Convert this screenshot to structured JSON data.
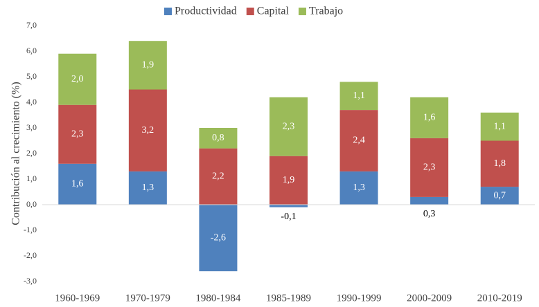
{
  "chart_data": {
    "type": "stacked_bar",
    "y_label": "Contribución al crecimiento (%)",
    "categories": [
      "1960-1969",
      "1970-1979",
      "1980-1984",
      "1985-1989",
      "1990-1999",
      "2000-2009",
      "2010-2019"
    ],
    "series": [
      {
        "name": "Productividad",
        "color": "#4f81bd",
        "values": [
          1.6,
          1.3,
          -2.6,
          -0.1,
          1.3,
          0.3,
          0.7
        ],
        "value_labels": [
          "1,6",
          "1,3",
          "-2,6",
          "-0,1",
          "1,3",
          "0,3",
          "0,7"
        ]
      },
      {
        "name": "Capital",
        "color": "#c0504d",
        "values": [
          2.3,
          3.2,
          2.2,
          1.9,
          2.4,
          2.3,
          1.8
        ],
        "value_labels": [
          "2,3",
          "3,2",
          "2,2",
          "1,9",
          "2,4",
          "2,3",
          "1,8"
        ]
      },
      {
        "name": "Trabajo",
        "color": "#9bbb59",
        "values": [
          2.0,
          1.9,
          0.8,
          2.3,
          1.1,
          1.6,
          1.1
        ],
        "value_labels": [
          "2,0",
          "1,9",
          "0,8",
          "2,3",
          "1,1",
          "1,6",
          "1,1"
        ]
      }
    ],
    "ylim": [
      -3,
      7
    ],
    "yticks": [
      {
        "value": -3,
        "label": "-3,0"
      },
      {
        "value": -2,
        "label": "-2,0"
      },
      {
        "value": -1,
        "label": "-1,0"
      },
      {
        "value": 0,
        "label": "0,0"
      },
      {
        "value": 1,
        "label": "1,0"
      },
      {
        "value": 2,
        "label": "2,0"
      },
      {
        "value": 3,
        "label": "3,0"
      },
      {
        "value": 4,
        "label": "4,0"
      },
      {
        "value": 5,
        "label": "5,0"
      },
      {
        "value": 6,
        "label": "6,0"
      },
      {
        "value": 7,
        "label": "7,0"
      }
    ],
    "grid": false,
    "legend": "top"
  }
}
